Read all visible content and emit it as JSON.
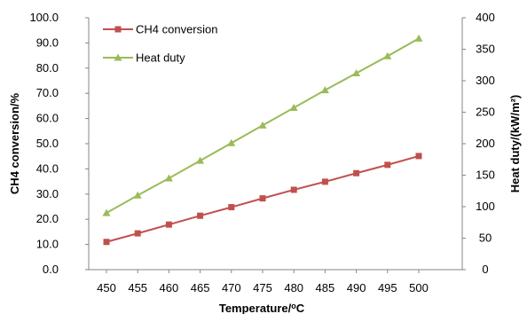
{
  "chart_data": {
    "type": "line",
    "x": [
      450,
      455,
      460,
      465,
      470,
      475,
      480,
      485,
      490,
      495,
      500
    ],
    "xlabel": "Temperature/",
    "xlabel_unit": "oC",
    "ylabel_left": "CH4 conversion/%",
    "ylabel_right": "Heat duty/(kW/m²)",
    "ylim_left": [
      0,
      100
    ],
    "ylim_right": [
      0,
      400
    ],
    "yticks_left": [
      "0.0",
      "10.0",
      "20.0",
      "30.0",
      "40.0",
      "50.0",
      "60.0",
      "70.0",
      "80.0",
      "90.0",
      "100.0"
    ],
    "yticks_right": [
      "0",
      "50",
      "100",
      "150",
      "200",
      "250",
      "300",
      "350",
      "400"
    ],
    "xticks": [
      "450",
      "455",
      "460",
      "465",
      "470",
      "475",
      "480",
      "485",
      "490",
      "495",
      "500"
    ],
    "grid": false,
    "legend_position": "top-left",
    "series": [
      {
        "name": "CH4 conversion",
        "axis": "left",
        "marker": "square",
        "color": "#c0504d",
        "values": [
          11.0,
          14.4,
          17.9,
          21.4,
          24.8,
          28.3,
          31.7,
          34.9,
          38.3,
          41.6,
          45.1
        ]
      },
      {
        "name": "Heat duty",
        "axis": "right",
        "marker": "triangle",
        "color": "#9bbb59",
        "values": [
          90,
          118,
          145,
          173,
          201,
          229,
          257,
          285,
          312,
          339,
          367
        ]
      }
    ]
  }
}
